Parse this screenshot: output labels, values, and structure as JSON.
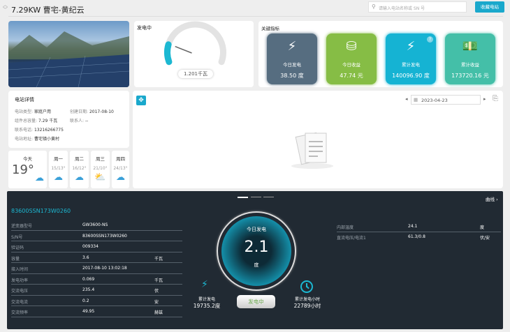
{
  "header": {
    "title": "7.29KW 曹宅-黄纪云",
    "search_placeholder": "请输入电站名称或 SN 号",
    "favorite_button": "收藏电站"
  },
  "gauge": {
    "label": "发电中",
    "value_text": "1.201千瓦",
    "value": 1.201,
    "max": 7.29,
    "color": "#1cb8d2"
  },
  "metrics": {
    "title": "关键指标",
    "items": [
      {
        "name": "今日发电",
        "value": "38.50 度",
        "color": "#566d80",
        "icon": "lightning-icon"
      },
      {
        "name": "今日收益",
        "value": "47.74 元",
        "color": "#86bd45",
        "icon": "coins-icon"
      },
      {
        "name": "累计发电",
        "value": "140096.90 度",
        "color": "#15b3d3",
        "icon": "lightning-icon"
      },
      {
        "name": "累计收益",
        "value": "173720.16 元",
        "color": "#44bfa8",
        "icon": "money-icon"
      }
    ]
  },
  "station": {
    "title": "电站详情",
    "type_label": "电站类型:",
    "type": "家庭户用",
    "created_label": "创建日期:",
    "created": "2017-08-10",
    "capacity_label": "组件总容量:",
    "capacity": "7.29 千瓦",
    "contact_label": "联系人:",
    "contact": "--",
    "phone_label": "联系电话:",
    "phone": "13216266775",
    "address_label": "电站地址:",
    "address": "曹宅镇小黄村"
  },
  "weather": [
    {
      "day": "今天",
      "temp": "19°",
      "icon": "cloud-icon"
    },
    {
      "day": "周一",
      "temp": "15/13°",
      "icon": "cloud-icon"
    },
    {
      "day": "周二",
      "temp": "16/12°",
      "icon": "cloud-icon"
    },
    {
      "day": "周三",
      "temp": "21/10°",
      "icon": "sun-cloud-icon"
    },
    {
      "day": "周四",
      "temp": "24/13°",
      "icon": "clouds-icon"
    }
  ],
  "chart": {
    "date": "2023-04-23"
  },
  "inverter": {
    "sn_title": "83600SSN173W0260",
    "curve_link": "曲线 ›",
    "rows": [
      {
        "k": "逆变器型号",
        "v": "GW3600-NS",
        "u": ""
      },
      {
        "k": "S/N号",
        "v": "83600SSN173W0260",
        "u": ""
      },
      {
        "k": "验证码",
        "v": "009334",
        "u": ""
      },
      {
        "k": "容量",
        "v": "3.6",
        "u": "千瓦"
      },
      {
        "k": "接入时间",
        "v": "2017-08-10 13:02:18",
        "u": ""
      },
      {
        "k": "发电功率",
        "v": "0.069",
        "u": "千瓦"
      },
      {
        "k": "交流电压",
        "v": "235.4",
        "u": "伏"
      },
      {
        "k": "交流电流",
        "v": "0.2",
        "u": "安"
      },
      {
        "k": "交流频率",
        "v": "49.95",
        "u": "赫兹"
      }
    ],
    "right_rows": [
      {
        "k": "内部温度",
        "v": "24.1",
        "u": "度"
      },
      {
        "k": "直流电压/电流1",
        "v": "61.3/0.8",
        "u": "伏/安"
      }
    ],
    "today_label": "今日发电",
    "today_value": "2.1",
    "today_unit": "度",
    "total_label": "累计发电",
    "total_value": "19735.2度",
    "hours_label": "累计发电小时",
    "hours_value": "22789小时",
    "status": "发电中"
  }
}
